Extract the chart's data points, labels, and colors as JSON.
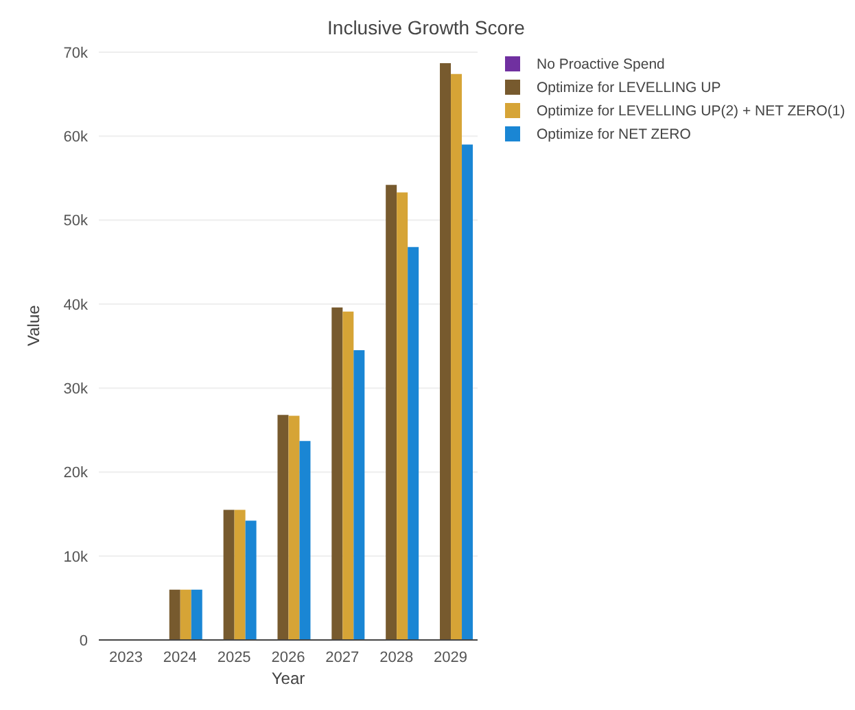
{
  "chart_data": {
    "type": "bar",
    "title": "Inclusive Growth Score",
    "xlabel": "Year",
    "ylabel": "Value",
    "categories": [
      "2023",
      "2024",
      "2025",
      "2026",
      "2027",
      "2028",
      "2029"
    ],
    "series": [
      {
        "name": "No Proactive Spend",
        "color": "#7030a0",
        "values": [
          0,
          0,
          0,
          0,
          0,
          0,
          0
        ]
      },
      {
        "name": "Optimize for LEVELLING UP",
        "color": "#775a2e",
        "values": [
          0,
          6000,
          15500,
          26800,
          39600,
          54200,
          68700
        ]
      },
      {
        "name": "Optimize for LEVELLING UP(2) + NET ZERO(1)",
        "color": "#d6a436",
        "values": [
          0,
          6000,
          15500,
          26700,
          39100,
          53300,
          67400
        ]
      },
      {
        "name": "Optimize for NET ZERO",
        "color": "#1a86d4",
        "values": [
          0,
          6000,
          14200,
          23700,
          34500,
          46800,
          59000
        ]
      }
    ],
    "ylim": [
      0,
      70000
    ],
    "yticks": [
      {
        "value": 0,
        "label": "0"
      },
      {
        "value": 10000,
        "label": "10k"
      },
      {
        "value": 20000,
        "label": "20k"
      },
      {
        "value": 30000,
        "label": "30k"
      },
      {
        "value": 40000,
        "label": "40k"
      },
      {
        "value": 50000,
        "label": "50k"
      },
      {
        "value": 60000,
        "label": "60k"
      },
      {
        "value": 70000,
        "label": "70k"
      }
    ],
    "grid": "y",
    "legend": "top right"
  }
}
